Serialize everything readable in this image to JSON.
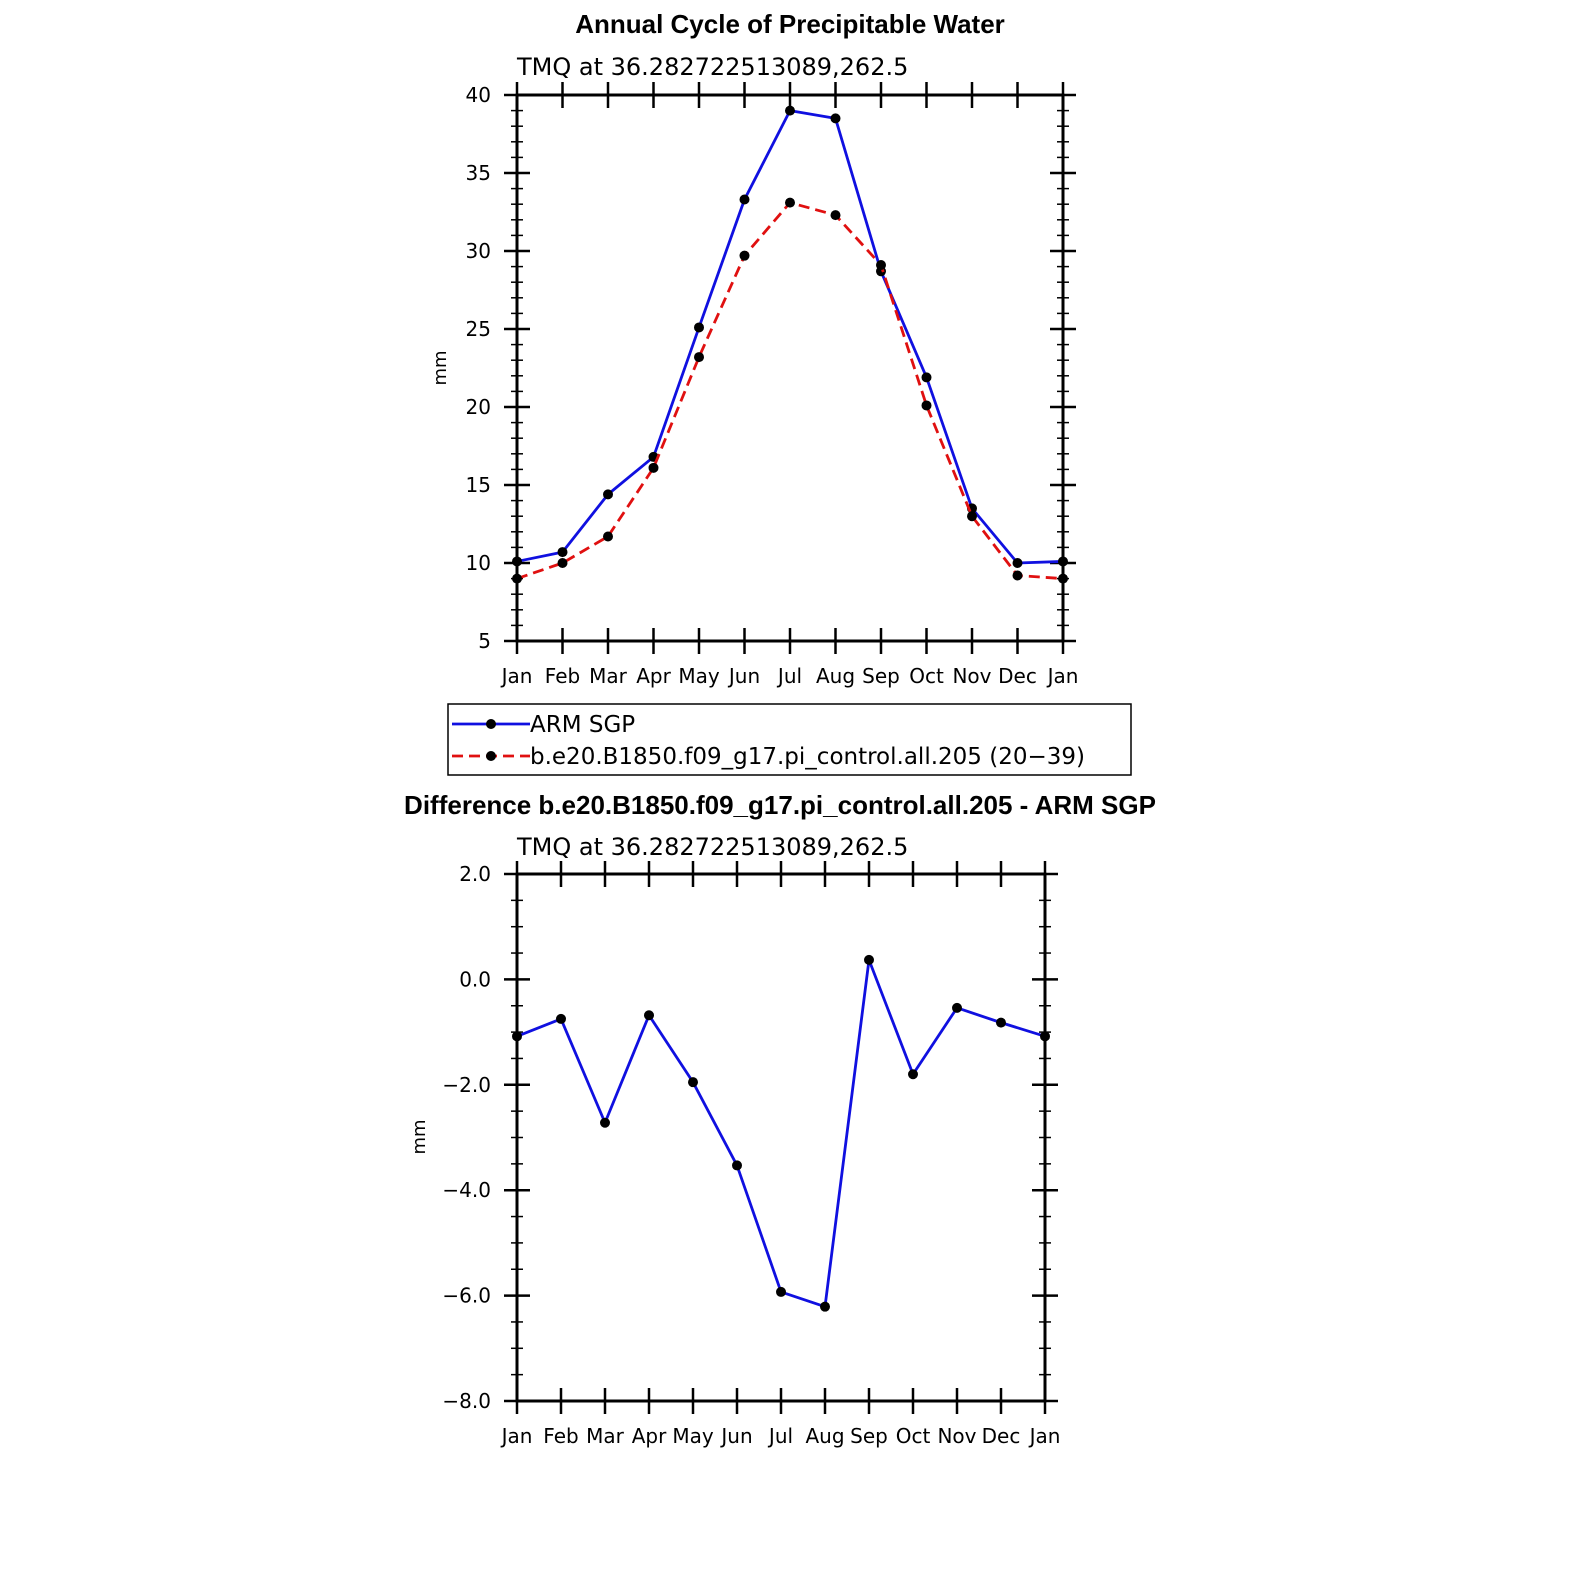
{
  "chart_data": [
    {
      "type": "line",
      "title": "Annual Cycle of Precipitable Water",
      "subtitle": "TMQ at 36.282722513089,262.5",
      "ylabel": "mm",
      "ylim": [
        5,
        40
      ],
      "yticks": [
        "40",
        "35",
        "30",
        "25",
        "20",
        "15",
        "10",
        "5"
      ],
      "ytick_values": [
        40,
        35,
        30,
        25,
        20,
        15,
        10,
        5
      ],
      "categories": [
        "Jan",
        "Feb",
        "Mar",
        "Apr",
        "May",
        "Jun",
        "Jul",
        "Aug",
        "Sep",
        "Oct",
        "Nov",
        "Dec",
        "Jan"
      ],
      "legend_position": "below",
      "series": [
        {
          "name": "ARM SGP",
          "color": "#1010e0",
          "dash": "solid",
          "values": [
            10.1,
            10.7,
            14.4,
            16.8,
            25.1,
            33.3,
            39.0,
            38.5,
            28.7,
            21.9,
            13.5,
            10.0,
            10.1
          ]
        },
        {
          "name": "b.e20.B1850.f09_g17.pi_control.all.205 (20−39)",
          "color": "#e01010",
          "dash": "dashed",
          "values": [
            9.0,
            10.0,
            11.7,
            16.1,
            23.2,
            29.7,
            33.1,
            32.3,
            29.1,
            20.1,
            13.0,
            9.2,
            9.0
          ]
        }
      ]
    },
    {
      "type": "line",
      "title": "Difference b.e20.B1850.f09_g17.pi_control.all.205 - ARM SGP",
      "subtitle": "TMQ at 36.282722513089,262.5",
      "ylabel": "mm",
      "ylim": [
        -8,
        2
      ],
      "yticks": [
        "2.0",
        "0.0",
        "−2.0",
        "−4.0",
        "−6.0",
        "−8.0"
      ],
      "ytick_values": [
        2,
        0,
        -2,
        -4,
        -6,
        -8
      ],
      "categories": [
        "Jan",
        "Feb",
        "Mar",
        "Apr",
        "May",
        "Jun",
        "Jul",
        "Aug",
        "Sep",
        "Oct",
        "Nov",
        "Dec",
        "Jan"
      ],
      "series": [
        {
          "color": "#1010e0",
          "dash": "solid",
          "values": [
            -1.08,
            -0.75,
            -2.72,
            -0.68,
            -1.95,
            -3.53,
            -5.93,
            -6.21,
            0.37,
            -1.8,
            -0.54,
            -0.82,
            -1.08
          ]
        }
      ]
    }
  ]
}
